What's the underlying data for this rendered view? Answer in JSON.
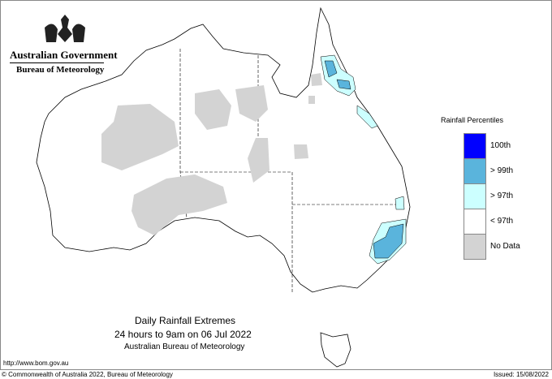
{
  "header": {
    "government": "Australian Government",
    "bureau": "Bureau of Meteorology"
  },
  "title": {
    "line1": "Daily Rainfall Extremes",
    "line2": "24 hours to 9am on 06 Jul 2022",
    "line3": "Australian Bureau of Meteorology"
  },
  "legend": {
    "title": "Rainfall Percentiles",
    "items": [
      {
        "label": "100th",
        "color": "#0000ff"
      },
      {
        "label": "> 99th",
        "color": "#5ab4dc"
      },
      {
        "label": "> 97th",
        "color": "#ccffff"
      },
      {
        "label": "< 97th",
        "color": "#ffffff"
      },
      {
        "label": "No Data",
        "color": "#d3d3d3"
      }
    ]
  },
  "footer": {
    "url": "http://www.bom.gov.au",
    "copyright": "© Commonwealth of Australia 2022, Bureau of Meteorology",
    "issued": "Issued: 15/08/2022"
  }
}
